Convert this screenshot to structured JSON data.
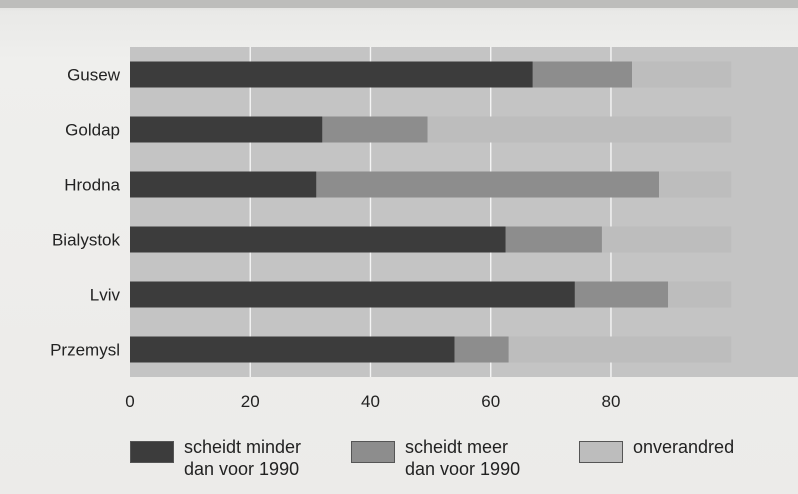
{
  "chart_data": {
    "type": "bar",
    "orientation": "horizontal",
    "stacked": true,
    "categories": [
      "Gusew",
      "Goldap",
      "Hrodna",
      "Bialystok",
      "Lviv",
      "Przemysl"
    ],
    "series": [
      {
        "name": "scheidt minder\ndan voor 1990",
        "color": "#3c3c3c",
        "values": [
          67,
          32,
          31,
          62.5,
          74,
          54
        ]
      },
      {
        "name": "scheidt meer\ndan voor 1990",
        "color": "#8d8d8d",
        "values": [
          16.5,
          17.5,
          57,
          16,
          15.5,
          9
        ]
      },
      {
        "name": "onverandred",
        "color": "#bdbdbd",
        "values": [
          16.5,
          50.5,
          12,
          21.5,
          10.5,
          37
        ]
      }
    ],
    "xlim": [
      0,
      100
    ],
    "xticks": [
      0,
      20,
      40,
      60,
      80
    ],
    "xtick_labels": [
      "0",
      "20",
      "40",
      "60",
      "80"
    ],
    "grid": true,
    "legend_position": "bottom"
  }
}
